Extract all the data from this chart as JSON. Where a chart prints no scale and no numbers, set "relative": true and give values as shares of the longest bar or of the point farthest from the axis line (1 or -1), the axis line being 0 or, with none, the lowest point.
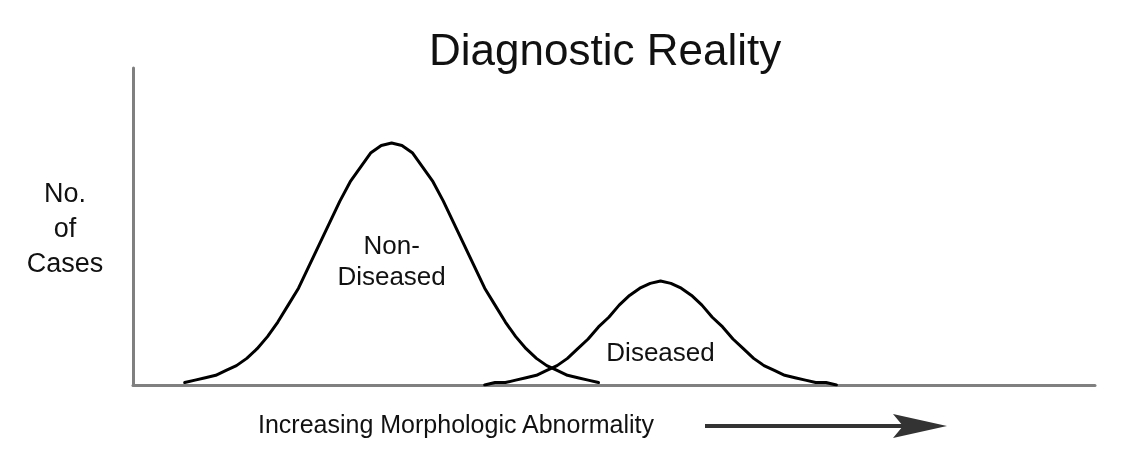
{
  "chart_data": {
    "type": "line",
    "title": "Diagnostic Reality",
    "xlabel": "Increasing Morphologic Abnormality",
    "ylabel": "No. of Cases",
    "relative": true,
    "marker": "none",
    "line_style": "solid",
    "categories": [
      null,
      null,
      null,
      null,
      null,
      null,
      null,
      null,
      null,
      null,
      null,
      null,
      null,
      null,
      null,
      null,
      null,
      null,
      null,
      null,
      null,
      null,
      null,
      null,
      null,
      null,
      null,
      null,
      null,
      null,
      null,
      null,
      null,
      null,
      null,
      null,
      null,
      null,
      null,
      null,
      null,
      null,
      null,
      null,
      null,
      null,
      null,
      null,
      null,
      null,
      null,
      null,
      null,
      null,
      null,
      null,
      null,
      null,
      null,
      null,
      null,
      null,
      null,
      null,
      null,
      null,
      null,
      null,
      null,
      null,
      null,
      null,
      null,
      null,
      null,
      null,
      null,
      null,
      null,
      null,
      null,
      null,
      null,
      null,
      null,
      null,
      null,
      null,
      null,
      null,
      null,
      null,
      null,
      null
    ],
    "series": [
      {
        "name": "Non-Diseased",
        "color": "#000000",
        "values": [
          null,
          null,
          null,
          null,
          null,
          0.01,
          0.02,
          0.03,
          0.04,
          0.06,
          0.08,
          0.11,
          0.15,
          0.2,
          0.26,
          0.33,
          0.4,
          0.49,
          0.58,
          0.67,
          0.76,
          0.84,
          0.9,
          0.96,
          0.99,
          1,
          0.99,
          0.96,
          0.9,
          0.84,
          0.76,
          0.67,
          0.58,
          0.49,
          0.4,
          0.33,
          0.26,
          0.2,
          0.15,
          0.11,
          0.08,
          0.06,
          0.04,
          0.03,
          0.02,
          0.01,
          null,
          null,
          null,
          null,
          null,
          null,
          null,
          null,
          null,
          null,
          null,
          null,
          null,
          null,
          null,
          null,
          null,
          null,
          null,
          null,
          null,
          null,
          null,
          null,
          null,
          null,
          null,
          null,
          null,
          null,
          null,
          null,
          null,
          null,
          null,
          null,
          null,
          null,
          null,
          null,
          null,
          null,
          null,
          null,
          null,
          null,
          null,
          null
        ]
      },
      {
        "name": "Diseased",
        "color": "#000000",
        "values": [
          null,
          null,
          null,
          null,
          null,
          null,
          null,
          null,
          null,
          null,
          null,
          null,
          null,
          null,
          null,
          null,
          null,
          null,
          null,
          null,
          null,
          null,
          null,
          null,
          null,
          null,
          null,
          null,
          null,
          null,
          null,
          null,
          null,
          null,
          0,
          0.01,
          0.01,
          0.02,
          0.03,
          0.04,
          0.06,
          0.08,
          0.11,
          0.15,
          0.19,
          0.24,
          0.28,
          0.33,
          0.37,
          0.4,
          0.42,
          0.43,
          0.42,
          0.4,
          0.37,
          0.33,
          0.28,
          0.24,
          0.19,
          0.15,
          0.11,
          0.08,
          0.06,
          0.04,
          0.03,
          0.02,
          0.01,
          0.01,
          0,
          null,
          null,
          null,
          null,
          null,
          null,
          null,
          null,
          null,
          null,
          null,
          null,
          null,
          null,
          null,
          null,
          null,
          null,
          null,
          null,
          null,
          null,
          null,
          null,
          null
        ]
      }
    ]
  }
}
